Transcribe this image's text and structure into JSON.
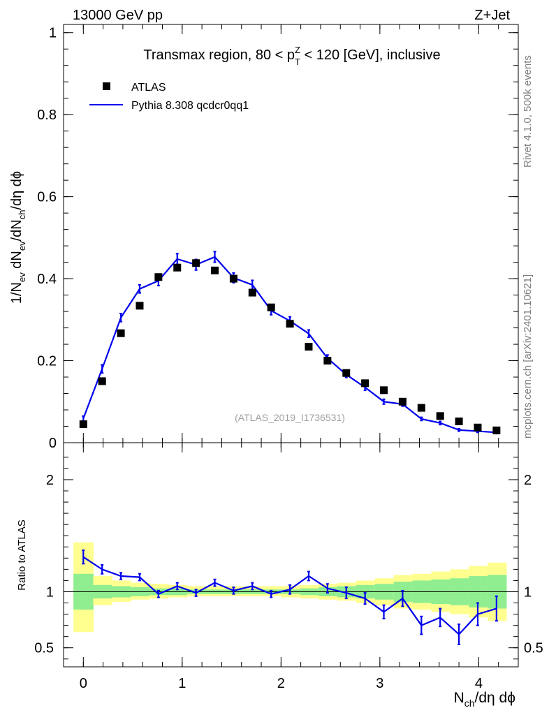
{
  "header": {
    "left_label": "13000 GeV pp",
    "right_label": "Z+Jet"
  },
  "side_labels": {
    "rivet": "Rivet 4.1.0,  500k events",
    "mcplots": "mcplots.cern.ch [arXiv:2401.10621]"
  },
  "colors": {
    "mc_line": "#0000ee",
    "data_marker": "#000000",
    "band_inner": "#90ee90",
    "band_outer": "#ffff90",
    "watermark": "#a0a0a0"
  },
  "chart_data": [
    {
      "type": "scatter",
      "panel": "main",
      "title_parts": {
        "before": "Transmax region, 80 < p",
        "sup": "Z",
        "sub": "T",
        "after": " < 120 [GeV], inclusive"
      },
      "ylabel_parts": [
        "1/N",
        "ev",
        " dN",
        "ev",
        "/dN",
        "ch",
        "/dη dϕ"
      ],
      "xlim": [
        -0.2,
        4.4
      ],
      "ylim": [
        0,
        1.02
      ],
      "yticks": [
        0,
        0.2,
        0.4,
        0.6,
        0.8,
        1
      ],
      "ytick_labels": [
        "0",
        "0.2",
        "0.4",
        "0.6",
        "0.8",
        "1"
      ],
      "watermark": "(ATLAS_2019_I1736531)",
      "legend": {
        "position": "top-left",
        "entries": [
          "ATLAS",
          "Pythia 8.308 qcdcr0qq1"
        ]
      },
      "series": [
        {
          "name": "ATLAS",
          "style": "markers",
          "x": [
            0,
            0.19,
            0.38,
            0.57,
            0.76,
            0.95,
            1.14,
            1.33,
            1.52,
            1.71,
            1.9,
            2.09,
            2.28,
            2.47,
            2.66,
            2.85,
            3.04,
            3.23,
            3.42,
            3.61,
            3.8,
            3.99,
            4.18
          ],
          "y": [
            0.045,
            0.15,
            0.267,
            0.334,
            0.404,
            0.427,
            0.438,
            0.42,
            0.4,
            0.366,
            0.33,
            0.29,
            0.234,
            0.2,
            0.17,
            0.145,
            0.128,
            0.1,
            0.085,
            0.065,
            0.052,
            0.037,
            0.03
          ]
        },
        {
          "name": "Pythia 8.308 qcdcr0qq1",
          "style": "line",
          "x": [
            0,
            0.19,
            0.38,
            0.57,
            0.76,
            0.95,
            1.14,
            1.33,
            1.52,
            1.71,
            1.9,
            2.09,
            2.28,
            2.47,
            2.66,
            2.85,
            3.04,
            3.23,
            3.42,
            3.61,
            3.8,
            3.99,
            4.18
          ],
          "y": [
            0.059,
            0.18,
            0.305,
            0.375,
            0.395,
            0.448,
            0.434,
            0.453,
            0.402,
            0.385,
            0.322,
            0.297,
            0.266,
            0.206,
            0.166,
            0.135,
            0.1,
            0.094,
            0.058,
            0.048,
            0.031,
            0.028,
            0.025
          ],
          "err": [
            0.006,
            0.01,
            0.01,
            0.01,
            0.012,
            0.013,
            0.013,
            0.013,
            0.012,
            0.011,
            0.01,
            0.01,
            0.009,
            0.008,
            0.007,
            0.007,
            0.006,
            0.005,
            0.004,
            0.004,
            0.003,
            0.003,
            0.003
          ]
        }
      ]
    },
    {
      "type": "line",
      "panel": "ratio",
      "ylabel": "Ratio to ATLAS",
      "xlabel_parts": [
        "N",
        "ch",
        "/dη dϕ"
      ],
      "xlim": [
        -0.2,
        4.4
      ],
      "ylim": [
        0.33,
        2.33
      ],
      "yticks": [
        0.5,
        1,
        2
      ],
      "ytick_labels": [
        "0.5",
        "1",
        "2"
      ],
      "xticks": [
        0,
        1,
        2,
        3,
        4
      ],
      "xtick_labels": [
        "0",
        "1",
        "2",
        "3",
        "4"
      ],
      "reference_line": 1,
      "bands": {
        "edges": [
          -0.1,
          0.1,
          0.29,
          0.48,
          0.67,
          0.86,
          1.05,
          1.24,
          1.43,
          1.62,
          1.81,
          2.0,
          2.19,
          2.38,
          2.57,
          2.76,
          2.95,
          3.14,
          3.33,
          3.52,
          3.71,
          3.9,
          4.09,
          4.28
        ],
        "outer_lo": [
          0.64,
          0.88,
          0.91,
          0.93,
          0.94,
          0.95,
          0.96,
          0.96,
          0.96,
          0.96,
          0.96,
          0.95,
          0.94,
          0.93,
          0.92,
          0.9,
          0.88,
          0.85,
          0.84,
          0.82,
          0.8,
          0.77,
          0.74
        ],
        "outer_hi": [
          1.44,
          1.14,
          1.1,
          1.08,
          1.07,
          1.06,
          1.05,
          1.05,
          1.05,
          1.05,
          1.05,
          1.05,
          1.06,
          1.07,
          1.08,
          1.1,
          1.12,
          1.15,
          1.16,
          1.18,
          1.2,
          1.23,
          1.26
        ],
        "inner_lo": [
          0.84,
          0.94,
          0.95,
          0.96,
          0.97,
          0.97,
          0.98,
          0.98,
          0.98,
          0.98,
          0.98,
          0.98,
          0.97,
          0.96,
          0.95,
          0.94,
          0.93,
          0.91,
          0.9,
          0.89,
          0.88,
          0.86,
          0.85
        ],
        "inner_hi": [
          1.16,
          1.06,
          1.05,
          1.04,
          1.03,
          1.03,
          1.02,
          1.02,
          1.02,
          1.02,
          1.02,
          1.02,
          1.03,
          1.04,
          1.05,
          1.06,
          1.07,
          1.09,
          1.1,
          1.11,
          1.12,
          1.14,
          1.15
        ]
      },
      "series": [
        {
          "name": "Pythia 8.308 qcdcr0qq1 / ATLAS",
          "x": [
            0,
            0.19,
            0.38,
            0.57,
            0.76,
            0.95,
            1.14,
            1.33,
            1.52,
            1.71,
            1.9,
            2.09,
            2.28,
            2.47,
            2.66,
            2.85,
            3.04,
            3.23,
            3.42,
            3.61,
            3.8,
            3.99,
            4.18
          ],
          "y": [
            1.31,
            1.2,
            1.14,
            1.13,
            0.98,
            1.05,
            0.99,
            1.08,
            1.01,
            1.05,
            0.98,
            1.02,
            1.14,
            1.03,
            0.99,
            0.94,
            0.82,
            0.94,
            0.7,
            0.77,
            0.62,
            0.8,
            0.85
          ],
          "err": [
            0.06,
            0.04,
            0.03,
            0.03,
            0.03,
            0.03,
            0.03,
            0.03,
            0.03,
            0.03,
            0.03,
            0.04,
            0.04,
            0.04,
            0.05,
            0.05,
            0.06,
            0.07,
            0.08,
            0.08,
            0.09,
            0.1,
            0.11
          ]
        }
      ]
    }
  ]
}
